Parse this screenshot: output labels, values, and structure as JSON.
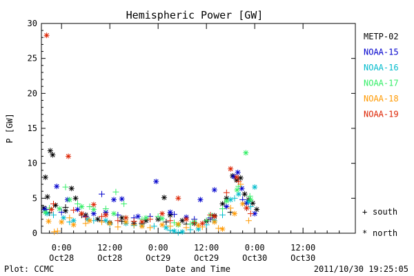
{
  "chart_data": {
    "type": "scatter",
    "title": "Hemispheric Power [GW]",
    "ylabel": "P [GW]",
    "xlabel": "Date and Time",
    "ylim": [
      0,
      30
    ],
    "yticks": [
      0,
      5,
      10,
      15,
      20,
      25,
      30
    ],
    "xlim_hours": [
      -5,
      73
    ],
    "xticks": [
      {
        "h": 0,
        "line1": "0:00",
        "line2": "Oct28"
      },
      {
        "h": 12,
        "line1": "12:00",
        "line2": "Oct28"
      },
      {
        "h": 24,
        "line1": "0:00",
        "line2": "Oct29"
      },
      {
        "h": 36,
        "line1": "12:00",
        "line2": "Oct29"
      },
      {
        "h": 48,
        "line1": "0:00",
        "line2": "Oct30"
      },
      {
        "h": 60,
        "line1": "12:00",
        "line2": "Oct30"
      }
    ],
    "marker_legend": [
      {
        "symbol": "+",
        "label": "south"
      },
      {
        "symbol": "*",
        "label": "north"
      }
    ],
    "series": [
      {
        "name": "METP-02",
        "color": "#000000",
        "north": [
          [
            -4.4,
            3.6
          ],
          [
            -4,
            8
          ],
          [
            -3.5,
            5.2
          ],
          [
            -2.8,
            11.8
          ],
          [
            -2.2,
            11.2
          ],
          [
            -1.5,
            4
          ],
          [
            1,
            3.2
          ],
          [
            2.5,
            6.4
          ],
          [
            3.5,
            5
          ],
          [
            6,
            2.6
          ],
          [
            9,
            2
          ],
          [
            12,
            1.5
          ],
          [
            15,
            2.2
          ],
          [
            18,
            1.4
          ],
          [
            21,
            1.8
          ],
          [
            24,
            2
          ],
          [
            25.5,
            5.1
          ],
          [
            27,
            2.6
          ],
          [
            30,
            1.8
          ],
          [
            33,
            1.4
          ],
          [
            36,
            1.7
          ],
          [
            38,
            2.5
          ],
          [
            40,
            4.2
          ],
          [
            41,
            5
          ],
          [
            42.5,
            8.2
          ],
          [
            43.5,
            7.6
          ],
          [
            44.5,
            7.9
          ],
          [
            45.5,
            5.6
          ],
          [
            46.5,
            4.8
          ],
          [
            47.5,
            4.3
          ],
          [
            48.5,
            3.4
          ]
        ],
        "south": [
          [
            -3,
            2.9
          ],
          [
            1,
            3.7
          ],
          [
            5,
            2.6
          ],
          [
            10,
            1.8
          ],
          [
            15,
            1.7
          ],
          [
            20,
            1.4
          ],
          [
            26,
            1.6
          ],
          [
            31,
            1.3
          ],
          [
            37,
            2
          ],
          [
            42,
            3
          ],
          [
            46,
            3.6
          ]
        ]
      },
      {
        "name": "NOAA-15",
        "color": "#0000cc",
        "north": [
          [
            -4.2,
            3.4
          ],
          [
            -1.2,
            6.7
          ],
          [
            1.5,
            4.8
          ],
          [
            4,
            3.4
          ],
          [
            8,
            2.8
          ],
          [
            11,
            3
          ],
          [
            13,
            4.8
          ],
          [
            15,
            4.9
          ],
          [
            19,
            2.4
          ],
          [
            23.5,
            7.4
          ],
          [
            27,
            3
          ],
          [
            31,
            2.3
          ],
          [
            34.5,
            4.8
          ],
          [
            38,
            6.2
          ],
          [
            41,
            3.8
          ],
          [
            42.8,
            8.1
          ],
          [
            43.8,
            8.7
          ],
          [
            44.8,
            6.4
          ],
          [
            46,
            4.3
          ],
          [
            48,
            2.8
          ]
        ],
        "south": [
          [
            -3.8,
            3.4
          ],
          [
            0,
            3
          ],
          [
            6,
            2.4
          ],
          [
            10,
            5.6
          ],
          [
            14,
            2.6
          ],
          [
            18,
            2.2
          ],
          [
            22,
            2.4
          ],
          [
            28,
            2.7
          ],
          [
            33,
            2
          ],
          [
            37,
            2.2
          ],
          [
            40,
            3.5
          ],
          [
            45,
            4.8
          ]
        ]
      },
      {
        "name": "NOAA-16",
        "color": "#00bbcc",
        "north": [
          [
            -3.6,
            2.8
          ],
          [
            0.5,
            2.2
          ],
          [
            3,
            1.8
          ],
          [
            6.5,
            2
          ],
          [
            11,
            1.8
          ],
          [
            16,
            1.4
          ],
          [
            20,
            1.2
          ],
          [
            26,
            0.8
          ],
          [
            28,
            0.3
          ],
          [
            30,
            0.2
          ],
          [
            34,
            0.6
          ],
          [
            38,
            1.8
          ],
          [
            42,
            4.8
          ],
          [
            44,
            5.6
          ],
          [
            46.5,
            4.5
          ],
          [
            48,
            6.6
          ]
        ],
        "south": [
          [
            -2,
            2.6
          ],
          [
            2,
            1.6
          ],
          [
            8,
            1.8
          ],
          [
            12,
            1.3
          ],
          [
            18,
            1.1
          ],
          [
            23,
            1
          ],
          [
            27,
            0.4
          ],
          [
            29,
            0.1
          ],
          [
            32,
            0.5
          ],
          [
            36,
            1.2
          ],
          [
            40,
            2.6
          ],
          [
            43,
            5
          ],
          [
            47,
            3.8
          ]
        ]
      },
      {
        "name": "NOAA-17",
        "color": "#33ee66",
        "north": [
          [
            -4,
            3
          ],
          [
            -0.5,
            3.5
          ],
          [
            2,
            4.8
          ],
          [
            5,
            3.8
          ],
          [
            8,
            3.4
          ],
          [
            13,
            2.8
          ],
          [
            16,
            2.2
          ],
          [
            21,
            2.2
          ],
          [
            25,
            2.1
          ],
          [
            29,
            1.2
          ],
          [
            33,
            1.6
          ],
          [
            37,
            2.6
          ],
          [
            41,
            4.6
          ],
          [
            43.6,
            6.2
          ],
          [
            45.8,
            11.5
          ],
          [
            47,
            4.8
          ]
        ],
        "south": [
          [
            -3,
            3.6
          ],
          [
            1,
            6.6
          ],
          [
            4,
            4.2
          ],
          [
            7,
            3.8
          ],
          [
            11,
            3.5
          ],
          [
            13.5,
            5.9
          ],
          [
            15.5,
            4.2
          ],
          [
            20,
            2
          ],
          [
            24,
            2.4
          ],
          [
            28,
            1.5
          ],
          [
            32,
            1.3
          ],
          [
            36,
            1.8
          ],
          [
            40,
            3.5
          ],
          [
            44,
            6.7
          ],
          [
            46.8,
            5.3
          ]
        ]
      },
      {
        "name": "NOAA-18",
        "color": "#ff9900",
        "north": [
          [
            -3.2,
            1.7
          ],
          [
            0,
            1.6
          ],
          [
            3,
            1.2
          ],
          [
            7,
            1.8
          ],
          [
            12,
            1.4
          ],
          [
            16,
            1.6
          ],
          [
            20,
            1
          ],
          [
            25,
            1.2
          ],
          [
            29,
            1.3
          ],
          [
            34,
            1.1
          ],
          [
            38,
            1.6
          ],
          [
            40,
            0.6
          ],
          [
            43,
            2.8
          ],
          [
            45,
            4.2
          ]
        ],
        "south": [
          [
            -1.8,
            0.2
          ],
          [
            -1,
            0.3
          ],
          [
            2,
            2.2
          ],
          [
            6,
            1.4
          ],
          [
            10,
            1.6
          ],
          [
            14,
            0.9
          ],
          [
            18,
            1.2
          ],
          [
            22,
            0.8
          ],
          [
            27,
            1
          ],
          [
            31,
            0.8
          ],
          [
            35,
            0.9
          ],
          [
            39,
            0.7
          ],
          [
            42,
            3.6
          ],
          [
            44.5,
            7
          ],
          [
            46.5,
            1.8
          ]
        ]
      },
      {
        "name": "NOAA-19",
        "color": "#dd2200",
        "north": [
          [
            -3.7,
            28.3
          ],
          [
            -2.5,
            3.4
          ],
          [
            1.7,
            11
          ],
          [
            5,
            2.8
          ],
          [
            8,
            4.1
          ],
          [
            11,
            2.6
          ],
          [
            16,
            2.2
          ],
          [
            20,
            1.6
          ],
          [
            25,
            2.8
          ],
          [
            29,
            5
          ],
          [
            31,
            2
          ],
          [
            35,
            1.4
          ],
          [
            38,
            2.4
          ],
          [
            42,
            9.2
          ],
          [
            43.5,
            8
          ],
          [
            46,
            3.6
          ]
        ],
        "south": [
          [
            -2,
            4.2
          ],
          [
            3,
            3.3
          ],
          [
            6,
            2.3
          ],
          [
            10,
            2.4
          ],
          [
            14,
            1.8
          ],
          [
            18,
            1.7
          ],
          [
            22,
            2
          ],
          [
            27,
            1.8
          ],
          [
            33,
            1.5
          ],
          [
            37,
            2.6
          ],
          [
            41,
            5.8
          ],
          [
            44,
            7.4
          ],
          [
            47,
            2.8
          ]
        ]
      }
    ]
  },
  "footer": {
    "left": "Plot: CCMC",
    "timestamp": "2011/10/30 19:25:05"
  }
}
